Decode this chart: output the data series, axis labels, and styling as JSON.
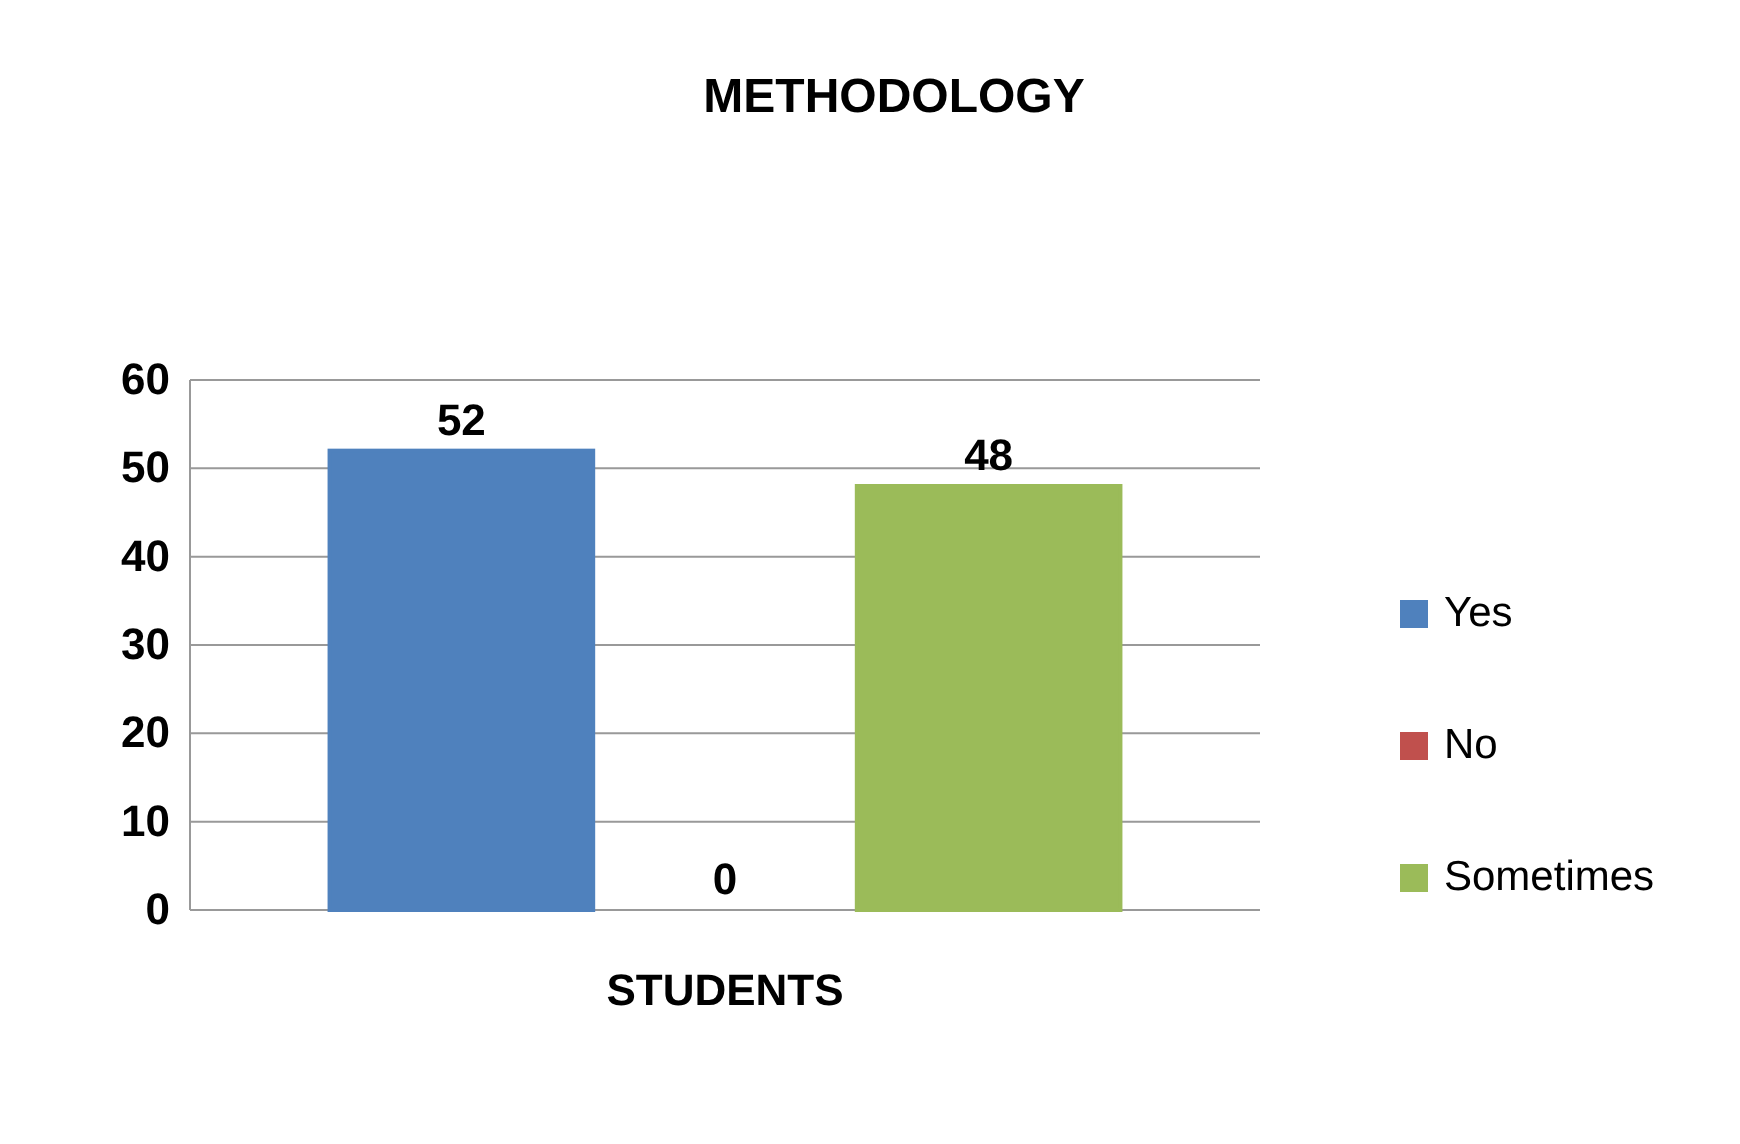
{
  "chart_data": {
    "type": "bar",
    "title": "METHODOLOGY",
    "categories": [
      "STUDENTS"
    ],
    "series": [
      {
        "name": "Yes",
        "color": "#4f81bd",
        "values": [
          52
        ]
      },
      {
        "name": "No",
        "color": "#c0504d",
        "values": [
          0
        ]
      },
      {
        "name": "Sometimes",
        "color": "#9bbb59",
        "values": [
          48
        ]
      }
    ],
    "ylim": [
      0,
      60
    ],
    "yticks": [
      0,
      10,
      20,
      30,
      40,
      50,
      60
    ],
    "grid": "y",
    "legend": "right",
    "data_labels": true
  }
}
